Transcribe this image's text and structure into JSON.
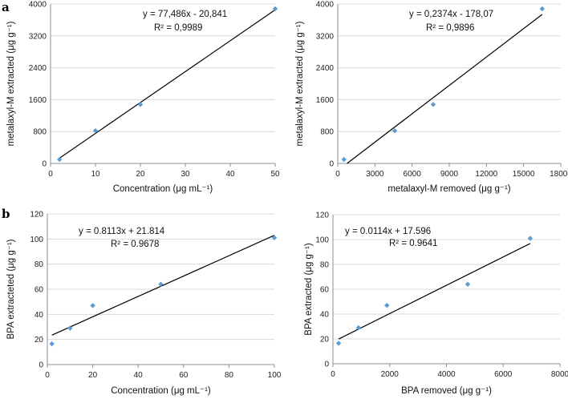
{
  "panels": [
    {
      "letter": "a"
    },
    {
      "letter": "b"
    }
  ],
  "chart_data": [
    {
      "type": "scatter",
      "xlabel": "Concentration (μg mL⁻¹)",
      "ylabel": "metalaxyl-M extracted (μg g⁻¹)",
      "xlim": [
        0,
        50
      ],
      "ylim": [
        0,
        4000
      ],
      "xticks": [
        "0",
        "10",
        "20",
        "30",
        "40",
        "50"
      ],
      "yticks": [
        "0",
        "800",
        "1600",
        "2400",
        "3200",
        "4000"
      ],
      "grid": true,
      "points": [
        {
          "x": 2,
          "y": 100
        },
        {
          "x": 10,
          "y": 820
        },
        {
          "x": 20,
          "y": 1480
        },
        {
          "x": 50,
          "y": 3880
        }
      ],
      "trendline": {
        "slope": 77.486,
        "intercept": -20.841,
        "x_start": 2,
        "x_end": 50
      },
      "equation": "y = 77,486x - 20,841",
      "r2": "R² = 0,9989"
    },
    {
      "type": "scatter",
      "xlabel": "metalaxyl-M removed (μg g⁻¹)",
      "ylabel": "metalaxyl-M extracted (μg g⁻¹)",
      "xlim": [
        0,
        18000
      ],
      "ylim": [
        0,
        4000
      ],
      "xticks": [
        "0",
        "3000",
        "6000",
        "9000",
        "12000",
        "15000",
        "18000"
      ],
      "yticks": [
        "0",
        "800",
        "1600",
        "2400",
        "3200",
        "4000"
      ],
      "grid": true,
      "points": [
        {
          "x": 500,
          "y": 100
        },
        {
          "x": 4600,
          "y": 820
        },
        {
          "x": 7700,
          "y": 1480
        },
        {
          "x": 16500,
          "y": 3880
        }
      ],
      "trendline": {
        "slope": 0.2374,
        "intercept": -178.07,
        "x_start": 750,
        "x_end": 16500
      },
      "equation": "y = 0,2374x - 178,07",
      "r2": "R² = 0,9896"
    },
    {
      "type": "scatter",
      "xlabel": "Concentration (μg mL⁻¹)",
      "ylabel": "BPA extracteted (μg g⁻¹)",
      "xlim": [
        0,
        100
      ],
      "ylim": [
        0,
        120
      ],
      "xticks": [
        "0",
        "20",
        "40",
        "60",
        "80",
        "100"
      ],
      "yticks": [
        "0",
        "20",
        "40",
        "60",
        "80",
        "100",
        "120"
      ],
      "grid": true,
      "points": [
        {
          "x": 2,
          "y": 16.5
        },
        {
          "x": 10,
          "y": 29
        },
        {
          "x": 20,
          "y": 47
        },
        {
          "x": 50,
          "y": 64
        },
        {
          "x": 100,
          "y": 101
        }
      ],
      "trendline": {
        "slope": 0.8113,
        "intercept": 21.814,
        "x_start": 2,
        "x_end": 100
      },
      "equation": "y = 0.8113x + 21.814",
      "r2": "R² = 0.9678"
    },
    {
      "type": "scatter",
      "xlabel": "BPA removed (μg g⁻¹)",
      "ylabel": "BPA extracted (μg g⁻¹)",
      "xlim": [
        0,
        8000
      ],
      "ylim": [
        0,
        120
      ],
      "xticks": [
        "0",
        "2000",
        "4000",
        "6000",
        "8000"
      ],
      "yticks": [
        "0",
        "20",
        "40",
        "60",
        "80",
        "100",
        "120"
      ],
      "grid": true,
      "points": [
        {
          "x": 200,
          "y": 16.5
        },
        {
          "x": 900,
          "y": 29
        },
        {
          "x": 1900,
          "y": 47
        },
        {
          "x": 4750,
          "y": 64
        },
        {
          "x": 6950,
          "y": 101
        }
      ],
      "trendline": {
        "slope": 0.0114,
        "intercept": 17.596,
        "x_start": 200,
        "x_end": 6950
      },
      "equation": "y = 0.0114x + 17.596",
      "r2": "R² = 0.9641"
    }
  ]
}
